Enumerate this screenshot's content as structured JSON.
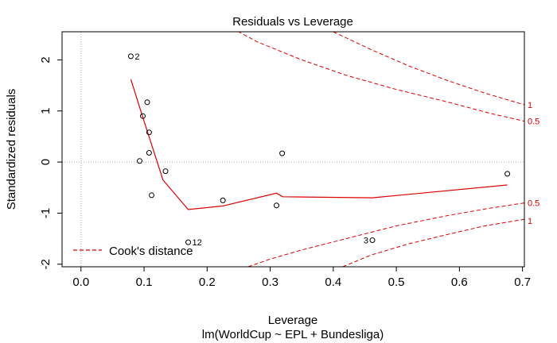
{
  "chart_data": {
    "type": "scatter",
    "title": "Residuals vs Leverage",
    "xlabel": "Leverage",
    "ylabel": "Standardized residuals",
    "subtitle": "lm(WorldCup ~ EPL + Bundesliga)",
    "xlim": [
      -0.03,
      0.703
    ],
    "ylim": [
      -2.05,
      2.55
    ],
    "x_ticks": [
      0.0,
      0.1,
      0.2,
      0.3,
      0.4,
      0.5,
      0.6,
      0.7
    ],
    "x_tick_labels": [
      "0.0",
      "0.1",
      "0.2",
      "0.3",
      "0.4",
      "0.5",
      "0.6",
      "0.7"
    ],
    "y_ticks": [
      -2,
      -1,
      0,
      1,
      2
    ],
    "y_tick_labels": [
      "-2",
      "-1",
      "0",
      "1",
      "2"
    ],
    "points": [
      {
        "x": 0.079,
        "y": 2.07,
        "label": "2"
      },
      {
        "x": 0.105,
        "y": 1.17,
        "label": ""
      },
      {
        "x": 0.098,
        "y": 0.9,
        "label": ""
      },
      {
        "x": 0.108,
        "y": 0.58,
        "label": ""
      },
      {
        "x": 0.108,
        "y": 0.18,
        "label": ""
      },
      {
        "x": 0.093,
        "y": 0.02,
        "label": ""
      },
      {
        "x": 0.134,
        "y": -0.18,
        "label": ""
      },
      {
        "x": 0.112,
        "y": -0.65,
        "label": ""
      },
      {
        "x": 0.225,
        "y": -0.75,
        "label": ""
      },
      {
        "x": 0.31,
        "y": -0.85,
        "label": ""
      },
      {
        "x": 0.319,
        "y": 0.17,
        "label": ""
      },
      {
        "x": 0.17,
        "y": -1.57,
        "label": "12"
      },
      {
        "x": 0.462,
        "y": -1.53,
        "label": "3"
      },
      {
        "x": 0.676,
        "y": -0.23,
        "label": ""
      }
    ],
    "smooth_line": {
      "x": [
        0.079,
        0.1,
        0.13,
        0.17,
        0.225,
        0.31,
        0.32,
        0.462,
        0.676
      ],
      "y": [
        1.62,
        0.8,
        -0.35,
        -0.93,
        -0.86,
        -0.61,
        -0.68,
        -0.7,
        -0.45
      ],
      "color": "#dd0000"
    },
    "cooks_contours": [
      {
        "label": "0.5",
        "sign": 1,
        "x": [
          0.18,
          0.22,
          0.28,
          0.35,
          0.42,
          0.5,
          0.58,
          0.65,
          0.703
        ],
        "y": [
          3.08,
          2.75,
          2.35,
          2.0,
          1.7,
          1.42,
          1.18,
          0.95,
          0.8
        ]
      },
      {
        "label": "1",
        "sign": 1,
        "x": [
          0.4,
          0.46,
          0.52,
          0.58,
          0.64,
          0.703
        ],
        "y": [
          2.55,
          2.2,
          1.88,
          1.6,
          1.35,
          1.12
        ]
      },
      {
        "label": "0.5",
        "sign": -1,
        "x": [
          0.265,
          0.3,
          0.35,
          0.42,
          0.5,
          0.58,
          0.65,
          0.703
        ],
        "y": [
          -2.05,
          -1.9,
          -1.72,
          -1.5,
          -1.25,
          -1.05,
          -0.9,
          -0.8
        ]
      },
      {
        "label": "1",
        "sign": -1,
        "x": [
          0.415,
          0.46,
          0.52,
          0.58,
          0.64,
          0.703
        ],
        "y": [
          -2.05,
          -1.82,
          -1.6,
          -1.42,
          -1.25,
          -1.12
        ]
      }
    ],
    "contour_labels": [
      {
        "text": "1",
        "y": 1.12
      },
      {
        "text": "0.5",
        "y": 0.8
      },
      {
        "text": "0.5",
        "y": -0.8
      },
      {
        "text": "1",
        "y": -1.15
      }
    ],
    "legend": {
      "label": "Cook's distance",
      "position": "bottom-left",
      "line": "dashed",
      "color": "#dd0000"
    },
    "reference_lines": {
      "h": 0,
      "v": 0,
      "style": "dotted",
      "color": "#aaaaaa"
    },
    "colors": {
      "points": "#000000",
      "fit": "#dd0000",
      "contours": "#dd0000"
    }
  }
}
